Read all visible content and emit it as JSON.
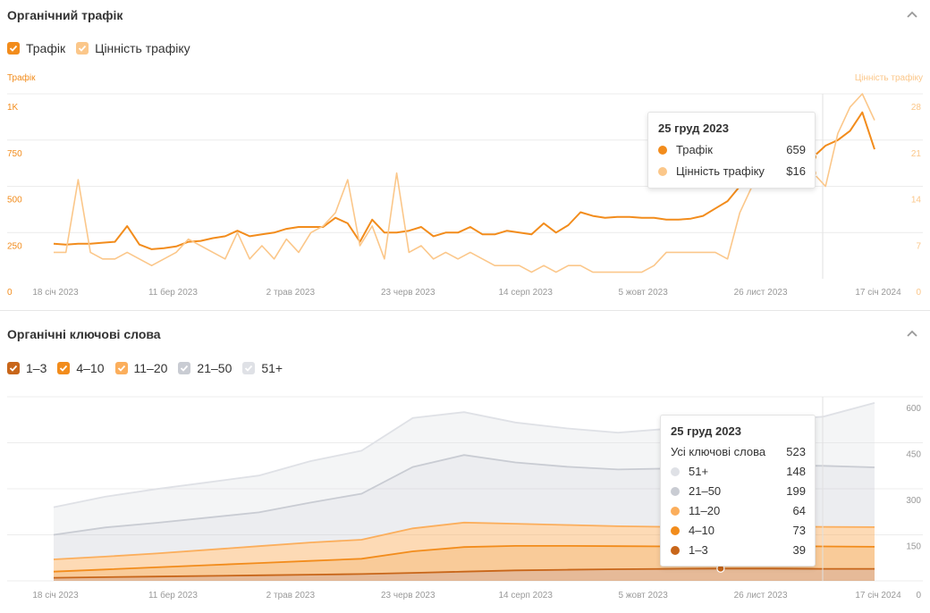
{
  "traffic_section": {
    "title": "Органічний трафік",
    "legend": [
      {
        "label": "Трафік",
        "color": "#f28c1c"
      },
      {
        "label": "Цінність трафіку",
        "color": "#fbc78a"
      }
    ],
    "left_axis_title": "Трафік",
    "right_axis_title": "Цінність трафіку",
    "tooltip": {
      "date": "25 груд 2023",
      "rows": [
        {
          "label": "Трафік",
          "value": "659",
          "color": "#f28c1c"
        },
        {
          "label": "Цінність трафіку",
          "value": "$16",
          "color": "#fbc78a"
        }
      ]
    }
  },
  "keywords_section": {
    "title": "Органічні ключові слова",
    "legend": [
      {
        "label": "1–3",
        "color": "#c8661a"
      },
      {
        "label": "4–10",
        "color": "#f28c1c"
      },
      {
        "label": "11–20",
        "color": "#fbae5c"
      },
      {
        "label": "21–50",
        "color": "#c9ccd3"
      },
      {
        "label": "51+",
        "color": "#dfe1e6"
      }
    ],
    "tooltip": {
      "date": "25 груд 2023",
      "total_label": "Усі ключові слова",
      "total_value": "523",
      "rows": [
        {
          "label": "51+",
          "value": "148",
          "color": "#dfe1e6"
        },
        {
          "label": "21–50",
          "value": "199",
          "color": "#c9ccd3"
        },
        {
          "label": "11–20",
          "value": "64",
          "color": "#fbae5c"
        },
        {
          "label": "4–10",
          "value": "73",
          "color": "#f28c1c"
        },
        {
          "label": "1–3",
          "value": "39",
          "color": "#c8661a"
        }
      ]
    }
  },
  "chart_data": [
    {
      "type": "line",
      "title": "Органічний трафік",
      "x_ticks": [
        "18 січ 2023",
        "11 бер 2023",
        "2 трав 2023",
        "23 черв 2023",
        "14 серп 2023",
        "5 жовт 2023",
        "26 лист 2023",
        "17 січ 2024"
      ],
      "y_left_ticks": [
        "0",
        "250",
        "500",
        "750",
        "1K"
      ],
      "y_right_ticks": [
        "0",
        "7",
        "14",
        "21",
        "28"
      ],
      "ylim_left": [
        0,
        1000
      ],
      "ylim_right": [
        0,
        28
      ],
      "series": [
        {
          "name": "Трафік",
          "axis": "left",
          "values": [
            190,
            185,
            190,
            190,
            195,
            200,
            285,
            185,
            160,
            165,
            175,
            200,
            205,
            220,
            230,
            260,
            230,
            240,
            250,
            270,
            280,
            280,
            280,
            330,
            300,
            200,
            320,
            250,
            250,
            260,
            280,
            230,
            250,
            250,
            280,
            240,
            240,
            260,
            250,
            240,
            300,
            250,
            290,
            360,
            340,
            330,
            335,
            335,
            330,
            330,
            320,
            320,
            325,
            340,
            380,
            420,
            500,
            560,
            620,
            700,
            680,
            650,
            659,
            720,
            750,
            800,
            900,
            700
          ]
        },
        {
          "name": "Цінність трафіку",
          "axis": "right",
          "values": [
            4,
            4,
            15,
            4,
            3,
            3,
            4,
            3,
            2,
            3,
            4,
            6,
            5,
            4,
            3,
            7,
            3,
            5,
            3,
            6,
            4,
            7,
            8,
            10,
            15,
            5,
            8,
            3,
            16,
            4,
            5,
            3,
            4,
            3,
            4,
            3,
            2,
            2,
            2,
            1,
            2,
            1,
            2,
            2,
            1,
            1,
            1,
            1,
            1,
            2,
            4,
            4,
            4,
            4,
            4,
            3,
            10,
            14,
            16,
            20,
            22,
            19,
            16,
            14,
            22,
            26,
            28,
            24
          ]
        }
      ]
    },
    {
      "type": "area",
      "title": "Органічні ключові слова",
      "x_ticks": [
        "18 січ 2023",
        "11 бер 2023",
        "2 трав 2023",
        "23 черв 2023",
        "14 серп 2023",
        "5 жовт 2023",
        "26 лист 2023",
        "17 січ 2024"
      ],
      "y_ticks": [
        "0",
        "150",
        "300",
        "450",
        "600"
      ],
      "ylim": [
        0,
        600
      ],
      "stacked": true,
      "series": [
        {
          "name": "1–3",
          "values": [
            10,
            12,
            14,
            16,
            18,
            20,
            22,
            26,
            30,
            34,
            36,
            38,
            39,
            40,
            40,
            39,
            39
          ]
        },
        {
          "name": "4–10",
          "values": [
            20,
            25,
            30,
            35,
            40,
            45,
            50,
            70,
            80,
            80,
            78,
            75,
            73,
            72,
            73,
            73,
            72
          ]
        },
        {
          "name": "11–20",
          "values": [
            40,
            42,
            45,
            50,
            55,
            60,
            62,
            75,
            80,
            72,
            68,
            65,
            64,
            64,
            64,
            64,
            64
          ]
        },
        {
          "name": "21–50",
          "values": [
            80,
            95,
            100,
            105,
            110,
            130,
            150,
            200,
            220,
            200,
            190,
            185,
            190,
            199,
            199,
            199,
            195
          ]
        },
        {
          "name": "51+",
          "values": [
            90,
            100,
            110,
            115,
            120,
            135,
            140,
            160,
            140,
            130,
            125,
            120,
            130,
            148,
            148,
            160,
            210
          ]
        }
      ]
    }
  ]
}
